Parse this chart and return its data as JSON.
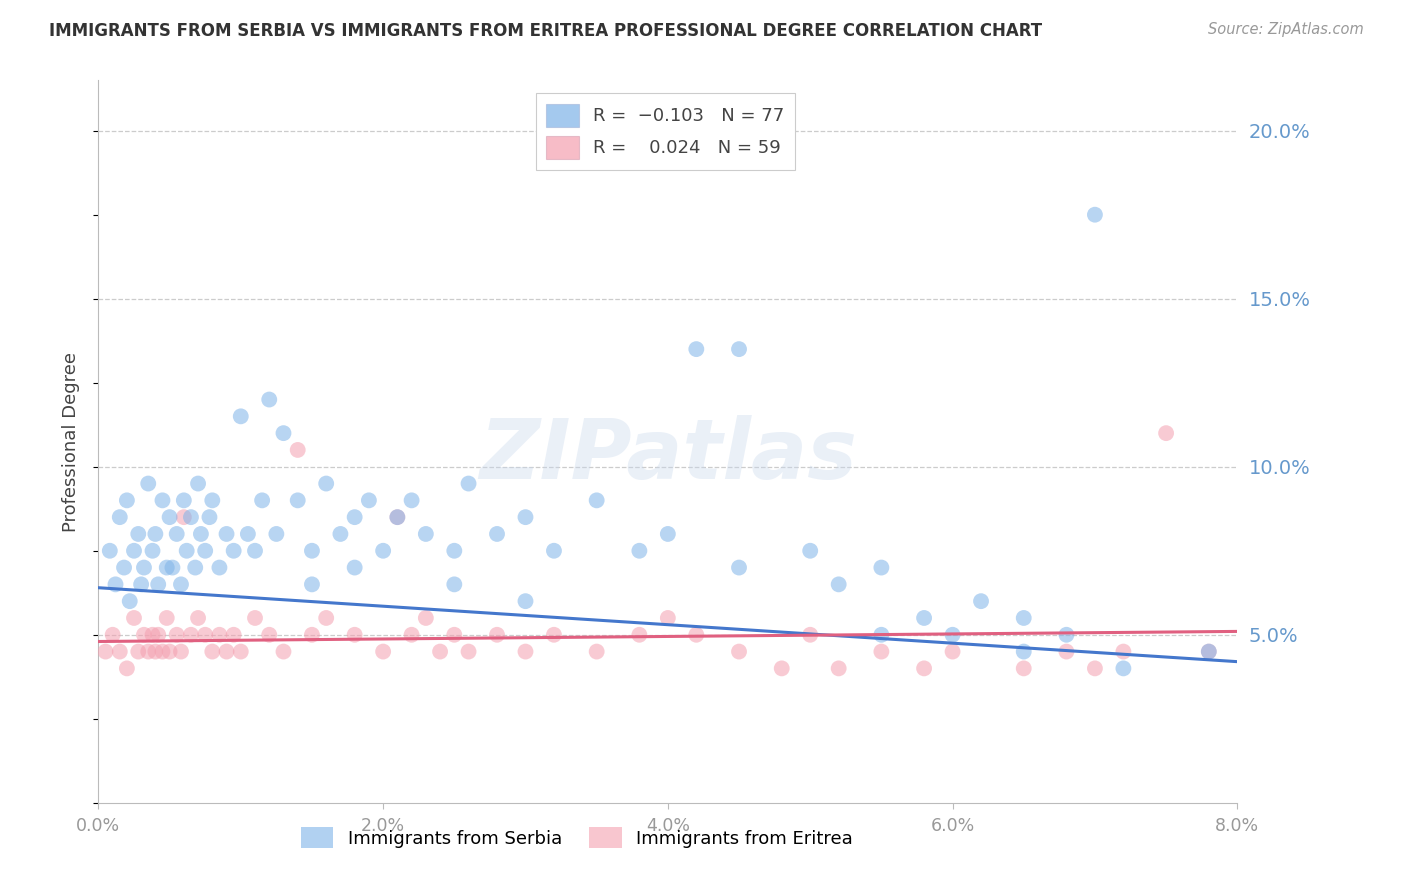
{
  "title": "IMMIGRANTS FROM SERBIA VS IMMIGRANTS FROM ERITREA PROFESSIONAL DEGREE CORRELATION CHART",
  "source": "Source: ZipAtlas.com",
  "ylabel": "Professional Degree",
  "serbia_label": "Immigrants from Serbia",
  "eritrea_label": "Immigrants from Eritrea",
  "serbia_R": -0.103,
  "serbia_N": 77,
  "eritrea_R": 0.024,
  "eritrea_N": 59,
  "serbia_color": "#7EB3E8",
  "eritrea_color": "#F4A0B0",
  "trend_serbia_color": "#4477CC",
  "trend_eritrea_color": "#E06080",
  "background_color": "#FFFFFF",
  "watermark": "ZIPatlas",
  "xlim": [
    0.0,
    8.0
  ],
  "ylim": [
    0.0,
    21.5
  ],
  "right_yticks": [
    5.0,
    10.0,
    15.0,
    20.0
  ],
  "right_ytick_labels": [
    "5.0%",
    "10.0%",
    "15.0%",
    "20.0%"
  ],
  "serbia_x": [
    0.08,
    0.12,
    0.15,
    0.18,
    0.2,
    0.22,
    0.25,
    0.28,
    0.3,
    0.32,
    0.35,
    0.38,
    0.4,
    0.42,
    0.45,
    0.48,
    0.5,
    0.52,
    0.55,
    0.58,
    0.6,
    0.62,
    0.65,
    0.68,
    0.7,
    0.72,
    0.75,
    0.78,
    0.8,
    0.85,
    0.9,
    0.95,
    1.0,
    1.05,
    1.1,
    1.15,
    1.2,
    1.25,
    1.3,
    1.4,
    1.5,
    1.6,
    1.7,
    1.8,
    1.9,
    2.0,
    2.1,
    2.2,
    2.3,
    2.5,
    2.6,
    2.8,
    3.0,
    3.2,
    3.5,
    3.8,
    4.0,
    4.2,
    4.5,
    5.0,
    5.2,
    5.5,
    5.8,
    6.0,
    6.2,
    6.5,
    6.8,
    7.0,
    1.5,
    1.8,
    2.5,
    3.0,
    4.5,
    5.5,
    6.5,
    7.2,
    7.8
  ],
  "serbia_y": [
    7.5,
    6.5,
    8.5,
    7.0,
    9.0,
    6.0,
    7.5,
    8.0,
    6.5,
    7.0,
    9.5,
    7.5,
    8.0,
    6.5,
    9.0,
    7.0,
    8.5,
    7.0,
    8.0,
    6.5,
    9.0,
    7.5,
    8.5,
    7.0,
    9.5,
    8.0,
    7.5,
    8.5,
    9.0,
    7.0,
    8.0,
    7.5,
    11.5,
    8.0,
    7.5,
    9.0,
    12.0,
    8.0,
    11.0,
    9.0,
    7.5,
    9.5,
    8.0,
    8.5,
    9.0,
    7.5,
    8.5,
    9.0,
    8.0,
    7.5,
    9.5,
    8.0,
    8.5,
    7.5,
    9.0,
    7.5,
    8.0,
    13.5,
    13.5,
    7.5,
    6.5,
    7.0,
    5.5,
    5.0,
    6.0,
    5.5,
    5.0,
    17.5,
    6.5,
    7.0,
    6.5,
    6.0,
    7.0,
    5.0,
    4.5,
    4.0,
    4.5
  ],
  "eritrea_x": [
    0.05,
    0.1,
    0.15,
    0.2,
    0.25,
    0.28,
    0.32,
    0.35,
    0.38,
    0.4,
    0.42,
    0.45,
    0.48,
    0.5,
    0.55,
    0.58,
    0.6,
    0.65,
    0.7,
    0.75,
    0.8,
    0.85,
    0.9,
    0.95,
    1.0,
    1.1,
    1.2,
    1.3,
    1.4,
    1.5,
    1.6,
    1.8,
    2.0,
    2.1,
    2.2,
    2.3,
    2.4,
    2.5,
    2.6,
    2.8,
    3.0,
    3.2,
    3.5,
    3.8,
    4.0,
    4.2,
    4.5,
    4.8,
    5.0,
    5.2,
    5.5,
    5.8,
    6.0,
    6.5,
    6.8,
    7.0,
    7.2,
    7.5,
    7.8
  ],
  "eritrea_y": [
    4.5,
    5.0,
    4.5,
    4.0,
    5.5,
    4.5,
    5.0,
    4.5,
    5.0,
    4.5,
    5.0,
    4.5,
    5.5,
    4.5,
    5.0,
    4.5,
    8.5,
    5.0,
    5.5,
    5.0,
    4.5,
    5.0,
    4.5,
    5.0,
    4.5,
    5.5,
    5.0,
    4.5,
    10.5,
    5.0,
    5.5,
    5.0,
    4.5,
    8.5,
    5.0,
    5.5,
    4.5,
    5.0,
    4.5,
    5.0,
    4.5,
    5.0,
    4.5,
    5.0,
    5.5,
    5.0,
    4.5,
    4.0,
    5.0,
    4.0,
    4.5,
    4.0,
    4.5,
    4.0,
    4.5,
    4.0,
    4.5,
    11.0,
    4.5
  ],
  "serbia_trend_x0": 0.0,
  "serbia_trend_y0": 6.4,
  "serbia_trend_x1": 8.0,
  "serbia_trend_y1": 4.2,
  "eritrea_trend_x0": 0.0,
  "eritrea_trend_y0": 4.8,
  "eritrea_trend_x1": 8.0,
  "eritrea_trend_y1": 5.1
}
